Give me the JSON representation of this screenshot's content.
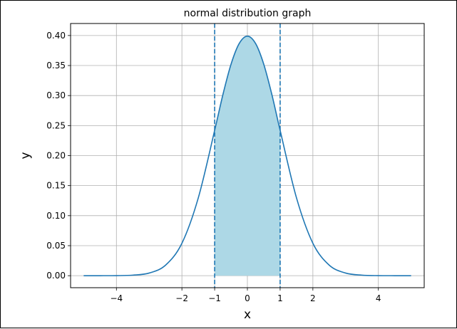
{
  "chart_data": {
    "type": "line",
    "title": "normal distribution graph",
    "xlabel": "x",
    "ylabel": "y",
    "xlim": [
      -5.4,
      5.4
    ],
    "ylim": [
      -0.02,
      0.42
    ],
    "grid": true,
    "x_ticks": [
      {
        "value": -4,
        "label": "−4"
      },
      {
        "value": -2,
        "label": "−2"
      },
      {
        "value": -1,
        "label": "−1"
      },
      {
        "value": 0,
        "label": "0"
      },
      {
        "value": 1,
        "label": "1"
      },
      {
        "value": 2,
        "label": "2"
      },
      {
        "value": 4,
        "label": "4"
      }
    ],
    "y_ticks": [
      {
        "value": 0.0,
        "label": "0.00"
      },
      {
        "value": 0.05,
        "label": "0.05"
      },
      {
        "value": 0.1,
        "label": "0.10"
      },
      {
        "value": 0.15,
        "label": "0.15"
      },
      {
        "value": 0.2,
        "label": "0.20"
      },
      {
        "value": 0.25,
        "label": "0.25"
      },
      {
        "value": 0.3,
        "label": "0.30"
      },
      {
        "value": 0.35,
        "label": "0.35"
      },
      {
        "value": 0.4,
        "label": "0.40"
      }
    ],
    "series": [
      {
        "x": [
          -5,
          -4.5,
          -4,
          -3.5,
          -3,
          -2.5,
          -2,
          -1.5,
          -1,
          -0.75,
          -0.5,
          -0.25,
          0,
          0.25,
          0.5,
          0.75,
          1,
          1.5,
          2,
          2.5,
          3,
          3.5,
          4,
          4.5,
          5
        ],
        "y": [
          0.0,
          0.0,
          0.0001,
          0.0009,
          0.0044,
          0.0175,
          0.054,
          0.1295,
          0.242,
          0.3011,
          0.3521,
          0.3867,
          0.3989,
          0.3867,
          0.3521,
          0.3011,
          0.242,
          0.1295,
          0.054,
          0.0175,
          0.0044,
          0.0009,
          0.0001,
          0.0,
          0.0
        ],
        "color": "#1f77b4"
      }
    ],
    "shaded_region": {
      "x_from": -1,
      "x_to": 1,
      "color": "#add8e6"
    },
    "vertical_lines": [
      {
        "x": -1,
        "style": "dashed",
        "color": "#1f77b4"
      },
      {
        "x": 1,
        "style": "dashed",
        "color": "#1f77b4"
      }
    ]
  }
}
